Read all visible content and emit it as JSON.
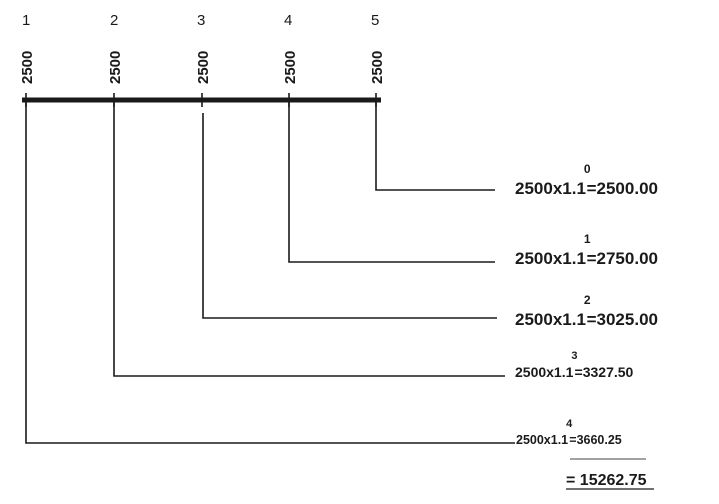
{
  "periods": [
    {
      "number": "1",
      "amount": "2500"
    },
    {
      "number": "2",
      "amount": "2500"
    },
    {
      "number": "3",
      "amount": "2500"
    },
    {
      "number": "4",
      "amount": "2500"
    },
    {
      "number": "5",
      "amount": "2500"
    }
  ],
  "formulas": [
    {
      "base": "2500x1.1",
      "exponent": "0",
      "result": "=2500.00"
    },
    {
      "base": "2500x1.1",
      "exponent": "1",
      "result": "=2750.00"
    },
    {
      "base": "2500x1.1",
      "exponent": "2",
      "result": "=3025.00"
    },
    {
      "base": "2500x1.1",
      "exponent": "3",
      "result": "=3327.50"
    },
    {
      "base": "2500x1.1",
      "exponent": "4",
      "result": "=3660.25"
    }
  ],
  "total": "= 15262.75"
}
